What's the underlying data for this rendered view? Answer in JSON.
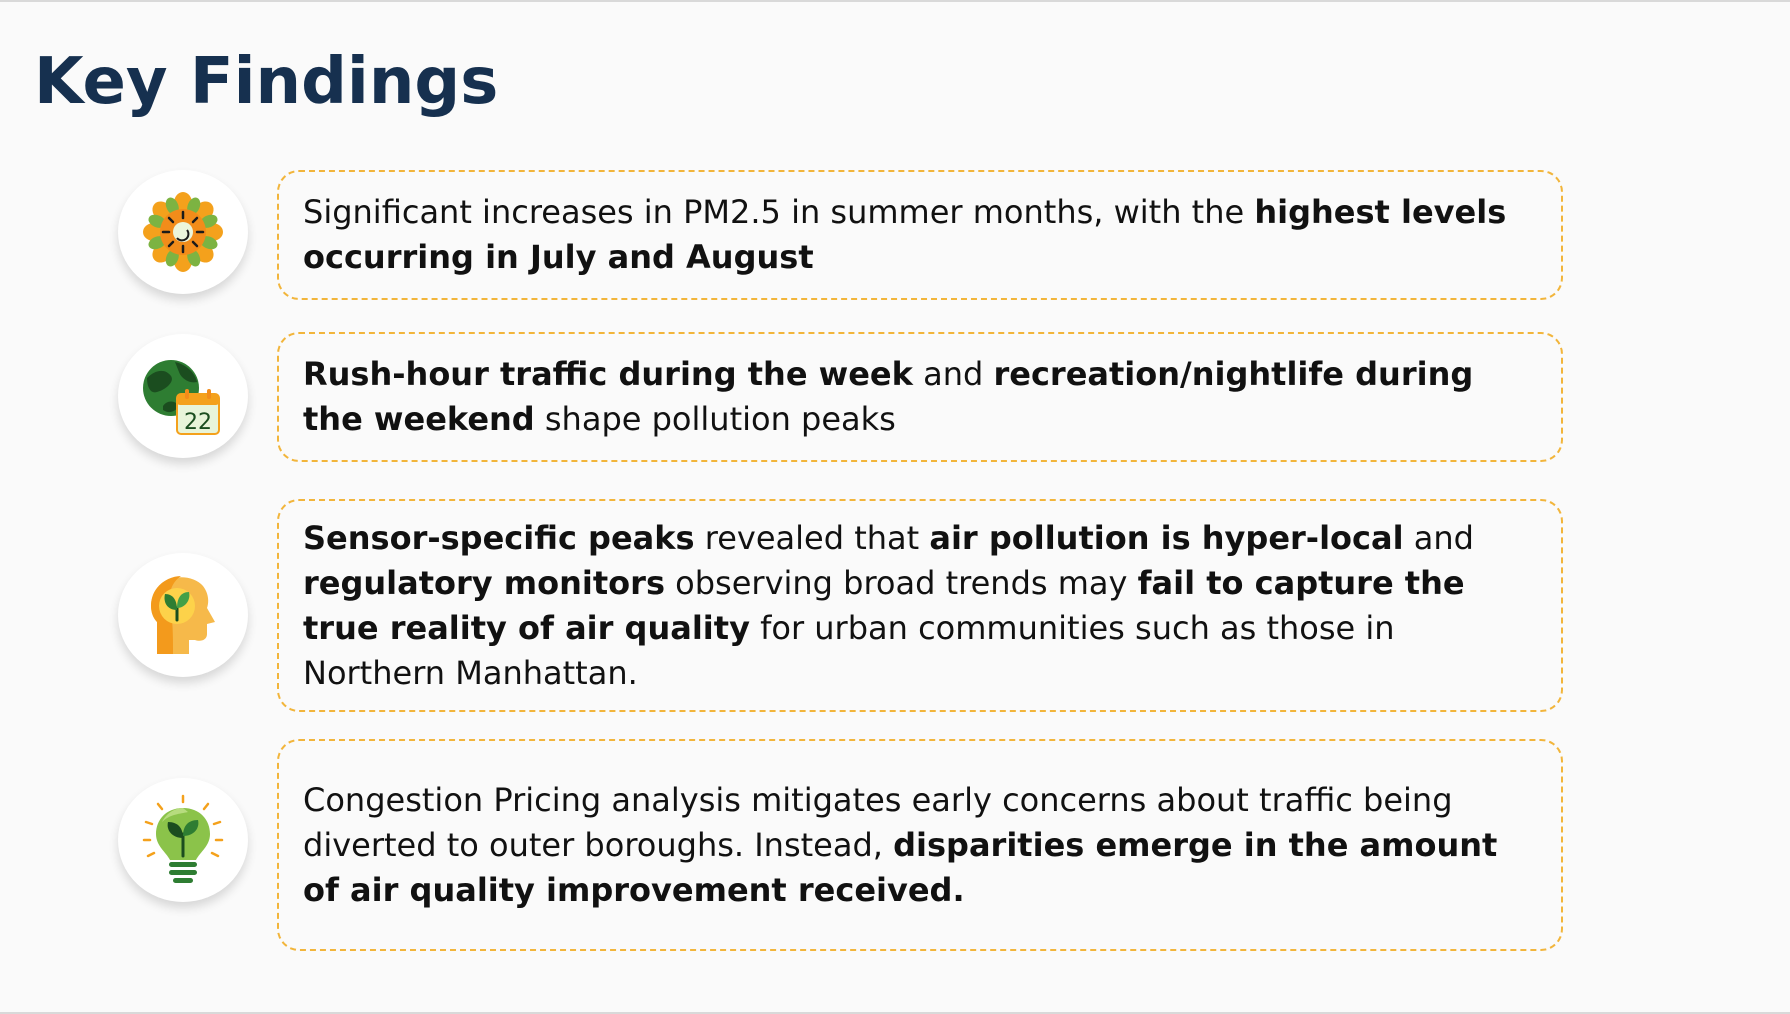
{
  "slide": {
    "title": "Key Findings"
  },
  "findings": [
    {
      "icon": "sun-flower-icon",
      "segments": [
        {
          "text": "Significant increases in PM2.5 in summer months, with the ",
          "bold": false
        },
        {
          "text": "highest levels occurring in July and August",
          "bold": true
        }
      ]
    },
    {
      "icon": "globe-calendar-icon",
      "icon_text": "22",
      "segments": [
        {
          "text": "Rush-hour traffic during the week",
          "bold": true
        },
        {
          "text": " and ",
          "bold": false
        },
        {
          "text": "recreation/nightlife during the weekend",
          "bold": true
        },
        {
          "text": " shape pollution peaks",
          "bold": false
        }
      ]
    },
    {
      "icon": "head-leaf-icon",
      "segments": [
        {
          "text": "Sensor-specific peaks",
          "bold": true
        },
        {
          "text": " revealed that ",
          "bold": false
        },
        {
          "text": "air pollution is hyper-local",
          "bold": true
        },
        {
          "text": " and ",
          "bold": false
        },
        {
          "text": "regulatory monitors",
          "bold": true
        },
        {
          "text": " observing broad trends may ",
          "bold": false
        },
        {
          "text": "fail to capture the true reality of air quality",
          "bold": true
        },
        {
          "text": " for urban communities such as those in Northern Manhattan.",
          "bold": false
        }
      ]
    },
    {
      "icon": "eco-lightbulb-icon",
      "segments": [
        {
          "text": "Congestion Pricing analysis mitigates early concerns about traffic being diverted to outer boroughs. Instead, ",
          "bold": false
        },
        {
          "text": "disparities emerge in the amount of air quality improvement received.",
          "bold": true
        }
      ]
    }
  ],
  "colors": {
    "title": "#16304f",
    "card_border": "#f2b53b",
    "background": "#fafafa"
  }
}
